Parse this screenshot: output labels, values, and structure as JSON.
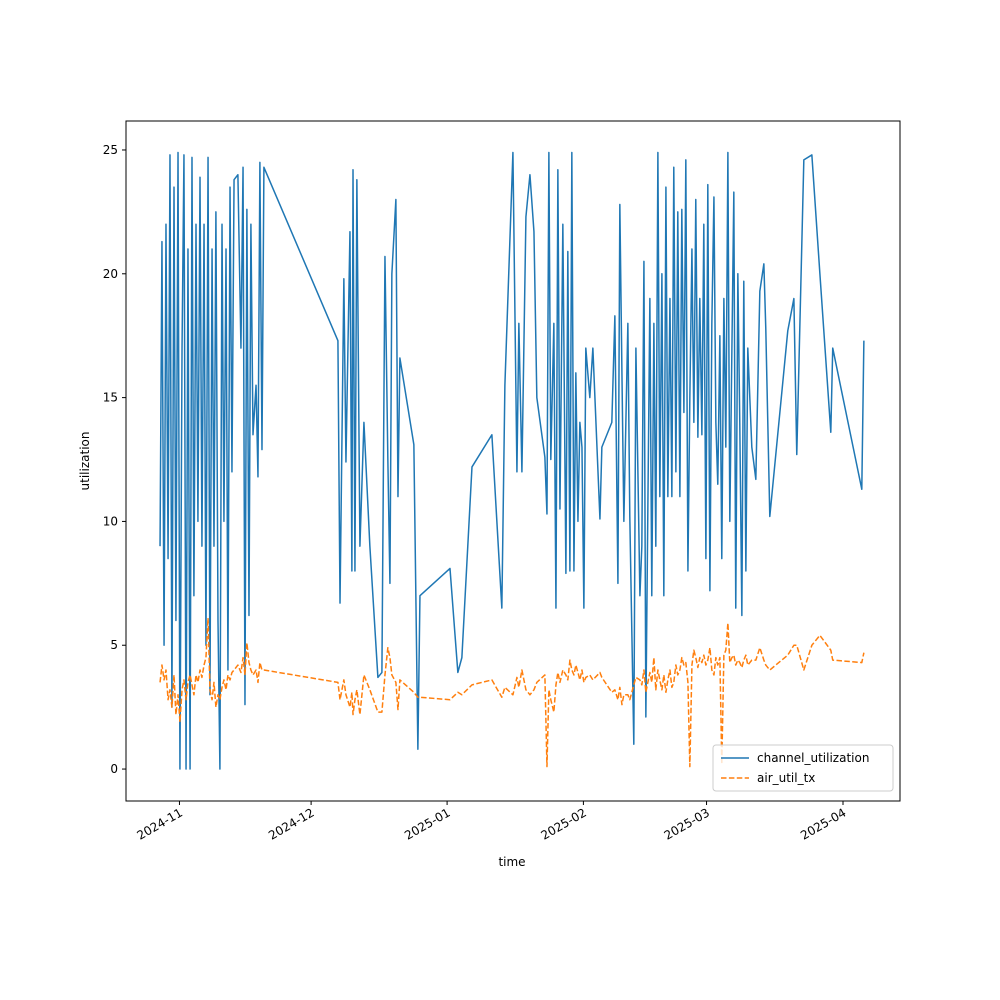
{
  "chart_data": {
    "type": "line",
    "x_label": "time",
    "y_label": "utilization",
    "xlim": [
      2024.8,
      2025.2821
    ],
    "ylim": [
      -1.29,
      26.17
    ],
    "xticks": [
      {
        "value": 2024.8333,
        "label": "2024-11"
      },
      {
        "value": 2024.9153,
        "label": "2024-12"
      },
      {
        "value": 2025.0,
        "label": "2025-01"
      },
      {
        "value": 2025.0849,
        "label": "2025-02"
      },
      {
        "value": 2025.1616,
        "label": "2025-03"
      },
      {
        "value": 2025.2466,
        "label": "2025-04"
      }
    ],
    "yticks": [
      0,
      5,
      10,
      15,
      20,
      25
    ],
    "legend": "lower right",
    "x": [
      2024.8212,
      2024.8224,
      2024.8237,
      2024.8249,
      2024.8262,
      2024.8274,
      2024.8286,
      2024.8299,
      2024.8311,
      2024.8324,
      2024.8336,
      2024.8349,
      2024.8361,
      2024.8374,
      2024.8386,
      2024.8399,
      2024.8411,
      2024.8423,
      2024.8436,
      2024.8448,
      2024.8461,
      2024.8473,
      2024.8486,
      2024.8498,
      2024.8511,
      2024.8523,
      2024.8536,
      2024.8548,
      2024.856,
      2024.8573,
      2024.8585,
      2024.8598,
      2024.861,
      2024.8623,
      2024.8635,
      2024.8648,
      2024.866,
      2024.8673,
      2024.8697,
      2024.8716,
      2024.8729,
      2024.8741,
      2024.8753,
      2024.8766,
      2024.8778,
      2024.8791,
      2024.881,
      2024.8822,
      2024.8834,
      2024.8847,
      2024.8859,
      2024.932,
      2024.9333,
      2024.9357,
      2024.937,
      2024.9395,
      2024.9407,
      2024.9414,
      2024.9426,
      2024.9438,
      2024.9457,
      2024.9482,
      2024.9519,
      2024.9569,
      2024.9594,
      2024.9613,
      2024.9631,
      2024.9644,
      2024.9656,
      2024.9681,
      2024.9694,
      2024.9706,
      2024.9793,
      2024.9818,
      2024.9831,
      2025.0018,
      2025.0067,
      2025.0092,
      2025.0155,
      2025.0279,
      2025.0341,
      2025.036,
      2025.041,
      2025.0435,
      2025.0447,
      2025.0466,
      2025.0491,
      2025.0516,
      2025.0541,
      2025.0559,
      2025.0609,
      2025.0622,
      2025.0634,
      2025.0646,
      2025.0665,
      2025.0678,
      2025.069,
      2025.0703,
      2025.0721,
      2025.074,
      2025.0752,
      2025.0765,
      2025.0777,
      2025.079,
      2025.0802,
      2025.0815,
      2025.0827,
      2025.084,
      2025.0852,
      2025.0864,
      2025.0889,
      2025.0908,
      2025.0952,
      2025.0964,
      2025.1026,
      2025.1045,
      2025.1064,
      2025.1076,
      2025.1089,
      2025.1101,
      2025.1126,
      2025.1138,
      2025.1163,
      2025.1176,
      2025.1201,
      2025.1213,
      2025.1226,
      2025.1238,
      2025.1263,
      2025.1275,
      2025.1288,
      2025.13,
      2025.1313,
      2025.1325,
      2025.1338,
      2025.135,
      2025.1363,
      2025.1375,
      2025.1388,
      2025.14,
      2025.1412,
      2025.1425,
      2025.1437,
      2025.145,
      2025.1462,
      2025.1475,
      2025.1487,
      2025.15,
      2025.1512,
      2025.1525,
      2025.1537,
      2025.1549,
      2025.1562,
      2025.1574,
      2025.1587,
      2025.1599,
      2025.1612,
      2025.1624,
      2025.1637,
      2025.1649,
      2025.1662,
      2025.1674,
      2025.1686,
      2025.1699,
      2025.1711,
      2025.1724,
      2025.1736,
      2025.1749,
      2025.1761,
      2025.1774,
      2025.1786,
      2025.1798,
      2025.1811,
      2025.1823,
      2025.1836,
      2025.1848,
      2025.1861,
      2025.1873,
      2025.1898,
      2025.1923,
      2025.1948,
      2025.1973,
      2025.1985,
      2025.201,
      2025.2122,
      2025.216,
      2025.2178,
      2025.2222,
      2025.2272,
      2025.2322,
      2025.239,
      2025.2402,
      2025.2583,
      2025.2596
    ],
    "series": [
      {
        "name": "channel_utilization",
        "color": "#1f77b4",
        "dash": "solid",
        "values": [
          9,
          21.3,
          5,
          22,
          8.5,
          24.8,
          2.5,
          23.5,
          6,
          24.9,
          0,
          17,
          24.8,
          0,
          21,
          0,
          24.7,
          7,
          22,
          10,
          23.9,
          9,
          22,
          5,
          24.7,
          3,
          21,
          9,
          22.5,
          6,
          0,
          22,
          10,
          21,
          4,
          23.5,
          12,
          23.8,
          24,
          17,
          24.3,
          2.6,
          22.6,
          6.2,
          22,
          13.5,
          15.5,
          11.8,
          24.5,
          12.9,
          24.3,
          17.3,
          6.7,
          19.8,
          12.4,
          21.7,
          8,
          24.2,
          8,
          23.8,
          9,
          14,
          9,
          3.7,
          3.9,
          20.7,
          12.5,
          7.5,
          20,
          23,
          11,
          16.6,
          13.1,
          0.8,
          7,
          8.1,
          3.9,
          4.5,
          12.2,
          13.5,
          6.5,
          15.5,
          24.9,
          12,
          18,
          12,
          22.3,
          24,
          21.7,
          15,
          12.6,
          10.3,
          24.9,
          12.5,
          18,
          6.5,
          24.2,
          10.5,
          22,
          7.9,
          20.9,
          8,
          24.9,
          8,
          16,
          10,
          14,
          13,
          6.5,
          17,
          15,
          17,
          10.1,
          13,
          14,
          18.3,
          7.5,
          22.8,
          16,
          10,
          18,
          10.2,
          1,
          17,
          7,
          9,
          20.5,
          2.1,
          19,
          7,
          18,
          9,
          24.9,
          11,
          20,
          7,
          23.5,
          11,
          19,
          11,
          24.3,
          12,
          22.5,
          11,
          22.6,
          14.4,
          24.6,
          8,
          15,
          21,
          14,
          23,
          13.4,
          19,
          13.5,
          22,
          8.5,
          23.6,
          7.2,
          18,
          23.1,
          14,
          11.5,
          17.5,
          8.5,
          19,
          13,
          24.9,
          10,
          17,
          23.3,
          6.5,
          20,
          14,
          6.2,
          19.7,
          8,
          17,
          13,
          11.7,
          19.3,
          20.4,
          17.8,
          10.2,
          17.7,
          19,
          12.7,
          24.6,
          24.8,
          20,
          13.6,
          17,
          11.3,
          17.3
        ]
      },
      {
        "name": "air_util_tx",
        "color": "#ff7f0e",
        "dash": "dashed",
        "values": [
          3.5,
          4.2,
          3.6,
          4.0,
          2.8,
          3.2,
          2.5,
          3.8,
          2.2,
          3.0,
          1.9,
          3.2,
          3.6,
          2.8,
          3.5,
          3.8,
          3.4,
          3.0,
          3.8,
          3.5,
          4.0,
          3.7,
          4.2,
          4.5,
          6.1,
          3.2,
          2.8,
          3.5,
          2.5,
          3.0,
          2.8,
          3.3,
          3.6,
          3.2,
          3.8,
          3.6,
          3.9,
          4.0,
          4.2,
          3.9,
          4.5,
          3.8,
          5.1,
          4.3,
          4.0,
          3.8,
          4.0,
          3.5,
          4.3,
          4.0,
          4.0,
          3.5,
          2.8,
          3.6,
          3.0,
          2.5,
          3.1,
          2.2,
          2.8,
          3.2,
          2.2,
          3.8,
          3.2,
          2.3,
          2.3,
          3.8,
          4.9,
          4.5,
          3.8,
          3.5,
          2.4,
          3.6,
          3.1,
          2.9,
          2.9,
          2.8,
          3.1,
          3.0,
          3.4,
          3.6,
          2.9,
          3.3,
          3.0,
          3.7,
          3.3,
          4.0,
          3.2,
          3.0,
          3.2,
          3.5,
          3.8,
          0.1,
          3.2,
          2.8,
          2.3,
          3.4,
          3.9,
          3.5,
          4.0,
          3.8,
          3.6,
          4.4,
          4.0,
          3.8,
          4.2,
          3.9,
          3.6,
          4.0,
          3.5,
          3.7,
          3.8,
          3.6,
          3.9,
          3.7,
          3.1,
          3.2,
          2.8,
          3.3,
          2.6,
          3.0,
          3.0,
          2.8,
          3.4,
          3.7,
          3.6,
          3.4,
          4.0,
          3.1,
          3.9,
          3.5,
          4.5,
          3.2,
          4.0,
          3.6,
          3.2,
          3.8,
          3.1,
          3.6,
          4.0,
          3.3,
          3.5,
          4.2,
          3.8,
          4.0,
          4.5,
          4.2,
          4.3,
          3.5,
          0.1,
          4.2,
          4.8,
          4.5,
          4.1,
          4.5,
          4.3,
          4.6,
          4.2,
          4.4,
          4.9,
          4.0,
          3.8,
          4.5,
          4.2,
          4.5,
          0.2,
          4.6,
          4.8,
          5.9,
          4.3,
          4.5,
          4.6,
          4.2,
          4.4,
          4.3,
          4.1,
          4.4,
          4.6,
          4.2,
          4.4,
          4.4,
          4.9,
          4.4,
          4.2,
          4.0,
          4.6,
          5.0,
          5.0,
          4.0,
          5.0,
          5.4,
          4.8,
          4.4,
          4.3,
          4.7
        ]
      }
    ]
  }
}
